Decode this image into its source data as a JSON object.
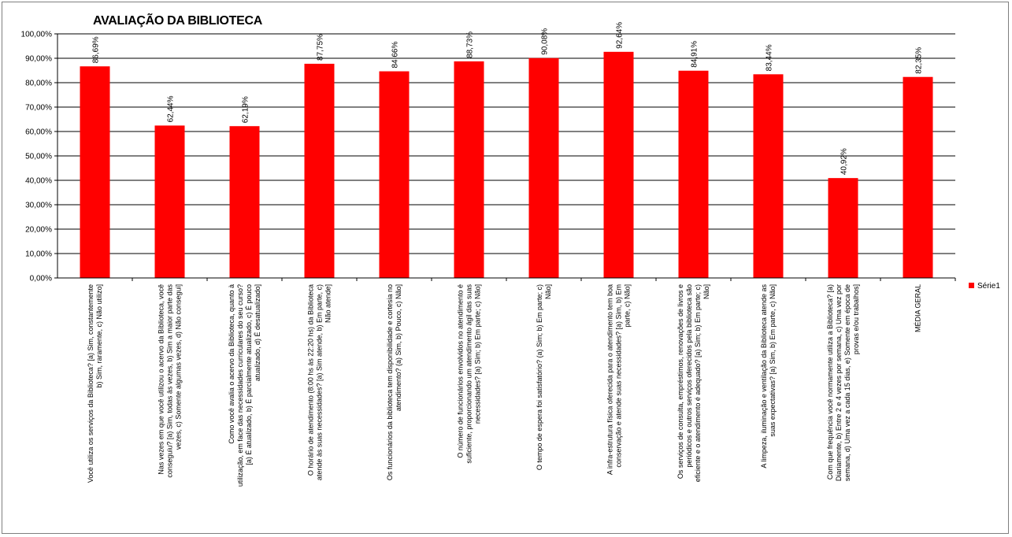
{
  "chart_data": {
    "type": "bar",
    "title": "AVALIAÇÃO DA BIBLIOTECA",
    "xlabel": "",
    "ylabel": "",
    "ylim": [
      0,
      100
    ],
    "y_ticks": [
      "0,00%",
      "10,00%",
      "20,00%",
      "30,00%",
      "40,00%",
      "50,00%",
      "60,00%",
      "70,00%",
      "80,00%",
      "90,00%",
      "100,00%"
    ],
    "grid": true,
    "legend_position": "right",
    "bar_color": "#ff0000",
    "categories": [
      [
        "Você utiliza os serviços da Biblioteca? [a) Sim, constantemente",
        "b) Sim, raramente, c) Não utilizo]"
      ],
      [
        "Nas vezes em que você utilizou o acervo da Biblioteca, você",
        "conseguiu? [a) Sim, todas às vezes, b) Sim a maior parte das",
        "vezes, c) Somente algumas vezes, d) Não consegui]"
      ],
      [
        "Como você avalia o acervo da Biblioteca, quanto à",
        "utilização, em face das necessidades curriculares do seu curso?",
        "[a) É atualizado, b) É parcialmente atualizado, c) É pouco",
        "atualizado, d) É desatualizado]"
      ],
      [
        "O horário de atendimento (8:00 hs às 22:20 hs) da Biblioteca",
        "atende às suas necessidades? [a) Sim atende, b) Em parte, c)",
        "Não atende]"
      ],
      [
        "Os funcionários da biblioteca tem disponibilidade e cortesia no",
        "atendimento? (a) Sim, b) Pouco, c) Não]"
      ],
      [
        "O número de funcionários envolvidos no atendimento é",
        "suficiente, proporcionando um atendimento ágil das suas",
        "necessidades? [a) Sim; b) Em parte; c) Não]"
      ],
      [
        "O tempo de espera foi satisfatório? (a) Sim; b) Em parte; c)",
        "Não]"
      ],
      [
        "A infra-estrutura física oferecida para o atendimento tem boa",
        "conservação e atende suas necessidades? [a) Sim, b) Em",
        "parte, c) Não]"
      ],
      [
        "Os serviços de consulta, empréstimos, renovações de livros e",
        "periódicos e outros serviços oferecidos pela biblioteca são",
        "eficiente e o atendimento é adequado? [a) Sim; b) Em parte; c)",
        "Não]"
      ],
      [
        "A limpeza, iluminação e ventilação da Biblioteca atende as",
        "suas expectativas? [a) Sim, b) Em parte, c) Não]"
      ],
      [
        "Com que frequência você normamente utiliza a Biblioteca? [a)",
        "Diariamente, b) Entre 2 e 4 vezes por semana, c) Uma vez por",
        "semana, d) Uma vez a cada 15 dias, e) Somente em época de",
        "provas e/ou trabalhos]"
      ],
      [
        "MÉDIA GERAL"
      ]
    ],
    "series": [
      {
        "name": "Série1",
        "values": [
          86.69,
          62.44,
          62.19,
          87.75,
          84.66,
          88.73,
          90.08,
          92.64,
          84.91,
          83.44,
          40.92,
          82.35
        ],
        "labels": [
          "86,69%",
          "62,44%",
          "62,19%",
          "87,75%",
          "84,66%",
          "88,73%",
          "90,08%",
          "92,64%",
          "84,91%",
          "83,44%",
          "40,92%",
          "82,35%"
        ]
      }
    ]
  }
}
